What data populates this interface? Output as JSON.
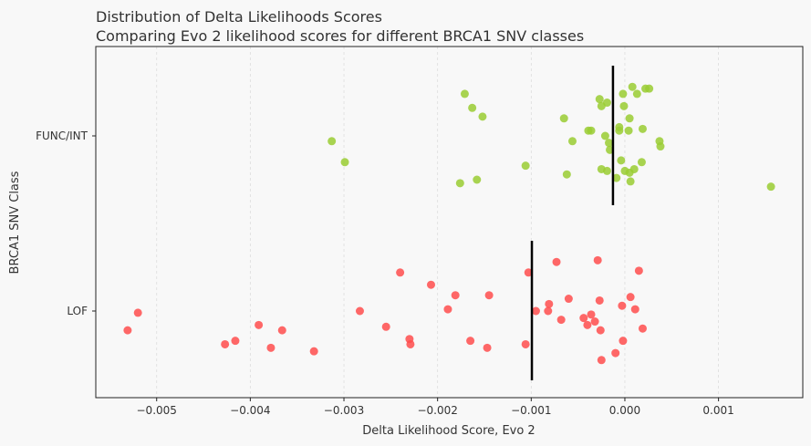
{
  "chart_data": {
    "type": "scatter",
    "subtype": "strip",
    "title": "Distribution of Delta Likelihoods Scores",
    "subtitle": "Comparing Evo 2 likelihood scores for different BRCA1 SNV classes",
    "xlabel": "Delta Likelihood Score, Evo 2",
    "ylabel": "BRCA1 SNV Class",
    "xlim": [
      -0.00565,
      0.0019
    ],
    "xticks": [
      -0.005,
      -0.004,
      -0.003,
      -0.002,
      -0.001,
      0.0,
      0.001
    ],
    "xtick_labels": [
      "−0.005",
      "−0.004",
      "−0.003",
      "−0.002",
      "−0.001",
      "0.000",
      "0.001"
    ],
    "grid": "x, dashed",
    "categories": [
      "FUNC/INT",
      "LOF"
    ],
    "series": [
      {
        "category": "FUNC/INT",
        "color": "#9acd32",
        "median": -0.000127,
        "points": [
          [
            -0.00065,
            -0.1
          ],
          [
            -0.00056,
            0.03
          ],
          [
            -0.00062,
            0.22
          ],
          [
            -0.00027,
            -0.21
          ],
          [
            -0.00019,
            -0.19
          ],
          [
            -0.00025,
            -0.17
          ],
          [
            -0.00039,
            -0.03
          ],
          [
            -0.00036,
            -0.03
          ],
          [
            -0.00021,
            0.0
          ],
          [
            -0.00017,
            0.04
          ],
          [
            -0.00016,
            0.08
          ],
          [
            -0.00025,
            0.19
          ],
          [
            -0.00019,
            0.2
          ],
          [
            -9e-05,
            0.24
          ],
          [
            -4e-05,
            0.14
          ],
          [
            -6e-05,
            -0.05
          ],
          [
            -6e-05,
            -0.03
          ],
          [
            4e-05,
            -0.03
          ],
          [
            -1e-05,
            -0.17
          ],
          [
            -2e-05,
            -0.24
          ],
          [
            8e-05,
            -0.28
          ],
          [
            0.00013,
            -0.24
          ],
          [
            0.00022,
            -0.27
          ],
          [
            0.00026,
            -0.27
          ],
          [
            5e-05,
            -0.1
          ],
          [
            0.00019,
            -0.04
          ],
          [
            0.0,
            0.2
          ],
          [
            5e-05,
            0.21
          ],
          [
            0.0001,
            0.19
          ],
          [
            0.00018,
            0.15
          ],
          [
            6e-05,
            0.26
          ],
          [
            0.00037,
            0.03
          ],
          [
            0.00038,
            0.06
          ],
          [
            -0.00313,
            0.03
          ],
          [
            -0.00299,
            0.15
          ],
          [
            -0.00171,
            -0.24
          ],
          [
            -0.00163,
            -0.16
          ],
          [
            -0.00152,
            -0.11
          ],
          [
            -0.00176,
            0.27
          ],
          [
            -0.00158,
            0.25
          ],
          [
            -0.00106,
            0.17
          ],
          [
            0.00156,
            0.29
          ]
        ]
      },
      {
        "category": "LOF",
        "color": "#ff4d4d",
        "median": -0.000993,
        "points": [
          [
            -0.00073,
            -0.28
          ],
          [
            -0.00029,
            -0.29
          ],
          [
            -0.00103,
            -0.22
          ],
          [
            0.00015,
            -0.23
          ],
          [
            -0.0006,
            -0.07
          ],
          [
            -0.00027,
            -0.06
          ],
          [
            -0.00081,
            -0.04
          ],
          [
            6e-05,
            -0.08
          ],
          [
            -3e-05,
            -0.03
          ],
          [
            -0.00095,
            0.0
          ],
          [
            -0.00082,
            0.0
          ],
          [
            0.00011,
            -0.01
          ],
          [
            -0.00068,
            0.05
          ],
          [
            -0.00044,
            0.04
          ],
          [
            -0.00036,
            0.02
          ],
          [
            -0.0004,
            0.08
          ],
          [
            -0.00032,
            0.06
          ],
          [
            -0.00026,
            0.11
          ],
          [
            0.00019,
            0.1
          ],
          [
            -0.00106,
            0.19
          ],
          [
            -2e-05,
            0.17
          ],
          [
            -0.0001,
            0.24
          ],
          [
            -0.00025,
            0.28
          ],
          [
            -0.0052,
            0.01
          ],
          [
            -0.00531,
            0.11
          ],
          [
            -0.00427,
            0.19
          ],
          [
            -0.00416,
            0.17
          ],
          [
            -0.00391,
            0.08
          ],
          [
            -0.00378,
            0.21
          ],
          [
            -0.00366,
            0.11
          ],
          [
            -0.00332,
            0.23
          ],
          [
            -0.00283,
            0.0
          ],
          [
            -0.00255,
            0.09
          ],
          [
            -0.0024,
            -0.22
          ],
          [
            -0.0023,
            0.16
          ],
          [
            -0.00229,
            0.19
          ],
          [
            -0.00207,
            -0.15
          ],
          [
            -0.00189,
            -0.01
          ],
          [
            -0.00181,
            -0.09
          ],
          [
            -0.00165,
            0.17
          ],
          [
            -0.00145,
            -0.09
          ],
          [
            -0.00147,
            0.21
          ]
        ]
      }
    ]
  }
}
